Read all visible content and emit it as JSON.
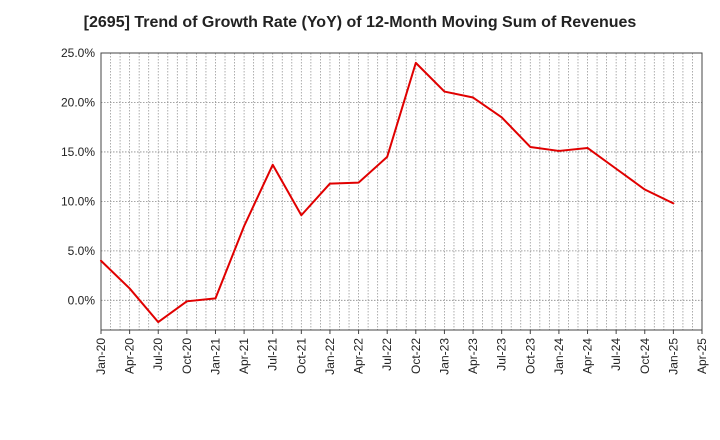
{
  "chart_data": {
    "type": "line",
    "title": "[2695]  Trend of Growth Rate (YoY) of 12-Month Moving Sum of Revenues",
    "xlabel": "",
    "ylabel": "",
    "ylim": [
      -3,
      25
    ],
    "y_ticks": [
      0,
      5,
      10,
      15,
      20,
      25
    ],
    "y_tick_labels": [
      "0.0%",
      "5.0%",
      "10.0%",
      "15.0%",
      "20.0%",
      "25.0%"
    ],
    "x_tick_labels": [
      "Jan-20",
      "Apr-20",
      "Jul-20",
      "Oct-20",
      "Jan-21",
      "Apr-21",
      "Jul-21",
      "Oct-21",
      "Jan-22",
      "Apr-22",
      "Jul-22",
      "Oct-22",
      "Jan-23",
      "Apr-23",
      "Jul-23",
      "Oct-23",
      "Jan-24",
      "Apr-24",
      "Jul-24",
      "Oct-24",
      "Jan-25",
      "Apr-25"
    ],
    "grid": true,
    "line_color": "#e00000",
    "series": [
      {
        "x": [
          "Jan-20",
          "Apr-20",
          "Jul-20",
          "Oct-20",
          "Jan-21",
          "Apr-21",
          "Jul-21",
          "Oct-21",
          "Jan-22",
          "Apr-22",
          "Jul-22",
          "Oct-22",
          "Jan-23",
          "Apr-23",
          "Jul-23",
          "Oct-23",
          "Jan-24",
          "Apr-24",
          "Jul-24",
          "Oct-24",
          "Jan-25"
        ],
        "values": [
          4.0,
          1.2,
          -2.2,
          -0.1,
          0.2,
          7.5,
          13.7,
          8.6,
          11.8,
          11.9,
          14.5,
          24.0,
          21.1,
          20.5,
          18.5,
          15.5,
          15.1,
          15.4,
          13.3,
          11.2,
          9.8
        ]
      }
    ]
  }
}
